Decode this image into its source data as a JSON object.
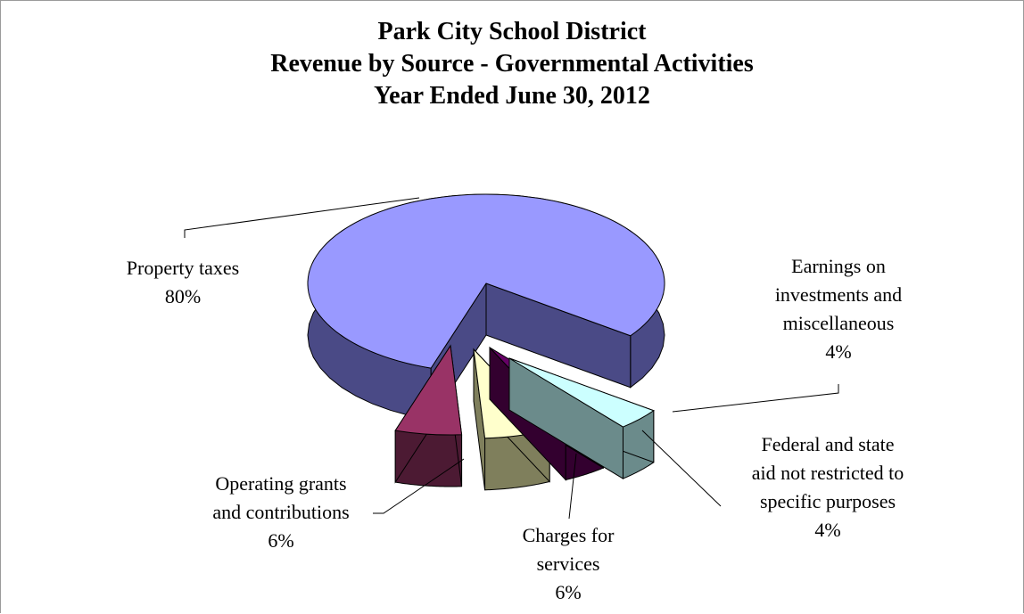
{
  "chart_data": {
    "type": "pie",
    "title_lines": [
      "Park City School District",
      "Revenue by Source - Governmental Activities",
      "Year Ended June 30, 2012"
    ],
    "slices": [
      {
        "label_lines": [
          "Property taxes"
        ],
        "percent_label": "80%",
        "value": 80,
        "color": "#9999ff",
        "side_color": "#4a4a86"
      },
      {
        "label_lines": [
          "Earnings on",
          "investments and",
          "miscellaneous"
        ],
        "percent_label": "4%",
        "value": 4,
        "color": "#ccffff",
        "side_color": "#6b8b8b"
      },
      {
        "label_lines": [
          "Federal and state",
          "aid not restricted to",
          "specific purposes"
        ],
        "percent_label": "4%",
        "value": 4,
        "color": "#660066",
        "side_color": "#33002f"
      },
      {
        "label_lines": [
          "Charges for",
          "services"
        ],
        "percent_label": "6%",
        "value": 6,
        "color": "#ffffcc",
        "side_color": "#7f7f5c"
      },
      {
        "label_lines": [
          "Operating grants",
          "and contributions"
        ],
        "percent_label": "6%",
        "value": 6,
        "color": "#993366",
        "side_color": "#4c1a33"
      }
    ],
    "style": "3d-exploded"
  }
}
